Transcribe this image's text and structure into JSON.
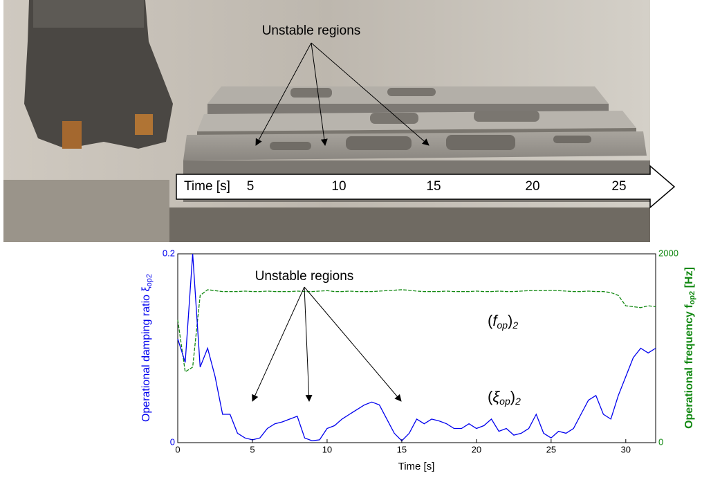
{
  "photo": {
    "annotation": "Unstable regions",
    "time_label": "Time [s]",
    "time_marks": [
      5,
      10,
      15,
      20,
      25
    ]
  },
  "chart_data": {
    "type": "line",
    "annotation": "Unstable regions",
    "xlabel": "Time [s]",
    "ylabel": {
      "text": "Operational damping ratio ξ",
      "sub": "op2"
    },
    "y2label": {
      "text": "Operational frequency  f",
      "sub": "op2",
      "end": " [Hz]"
    },
    "series_labels": [
      {
        "open": "(",
        "symbol": "f",
        "sub": "op",
        "close": ")",
        "index": "2"
      },
      {
        "open": "(",
        "symbol": "ξ",
        "sub": "op",
        "close": ")",
        "index": "2"
      }
    ],
    "xlim": [
      0,
      32
    ],
    "xticks": [
      0,
      5,
      10,
      15,
      20,
      25,
      30
    ],
    "ylim": [
      0,
      0.2
    ],
    "yticks": [
      0,
      0.2
    ],
    "y2lim": [
      0,
      2000
    ],
    "y2ticks": [
      0,
      2000
    ],
    "x": [
      0,
      0.5,
      1,
      1.5,
      2,
      2.5,
      3,
      3.5,
      4,
      4.5,
      5,
      5.5,
      6,
      6.5,
      7,
      7.5,
      8,
      8.5,
      9,
      9.5,
      10,
      10.5,
      11,
      11.5,
      12,
      12.5,
      13,
      13.5,
      14,
      14.5,
      15,
      15.5,
      16,
      16.5,
      17,
      17.5,
      18,
      18.5,
      19,
      19.5,
      20,
      20.5,
      21,
      21.5,
      22,
      22.5,
      23,
      23.5,
      24,
      24.5,
      25,
      25.5,
      26,
      26.5,
      27,
      27.5,
      28,
      28.5,
      29,
      29.5,
      30,
      30.5,
      31,
      31.5,
      32
    ],
    "series": [
      {
        "color": "#0000ee",
        "axis": "y",
        "dash": false,
        "values": [
          0.11,
          0.085,
          0.2,
          0.08,
          0.1,
          0.07,
          0.03,
          0.03,
          0.01,
          0.005,
          0.003,
          0.005,
          0.015,
          0.02,
          0.022,
          0.025,
          0.028,
          0.005,
          0.002,
          0.003,
          0.015,
          0.018,
          0.025,
          0.03,
          0.035,
          0.04,
          0.043,
          0.04,
          0.025,
          0.01,
          0.002,
          0.01,
          0.025,
          0.02,
          0.025,
          0.023,
          0.02,
          0.015,
          0.015,
          0.02,
          0.015,
          0.018,
          0.025,
          0.012,
          0.015,
          0.008,
          0.01,
          0.015,
          0.03,
          0.01,
          0.005,
          0.012,
          0.01,
          0.015,
          0.03,
          0.045,
          0.05,
          0.03,
          0.025,
          0.05,
          0.07,
          0.09,
          0.1,
          0.095,
          0.1
        ]
      },
      {
        "color": "#118811",
        "axis": "y2",
        "dash": true,
        "values": [
          1300,
          750,
          800,
          1560,
          1620,
          1610,
          1600,
          1600,
          1600,
          1605,
          1600,
          1600,
          1605,
          1600,
          1600,
          1600,
          1605,
          1600,
          1600,
          1605,
          1610,
          1600,
          1600,
          1605,
          1600,
          1600,
          1600,
          1605,
          1610,
          1615,
          1620,
          1615,
          1605,
          1600,
          1600,
          1600,
          1605,
          1600,
          1600,
          1600,
          1605,
          1600,
          1600,
          1605,
          1600,
          1600,
          1605,
          1610,
          1610,
          1610,
          1615,
          1610,
          1605,
          1600,
          1600,
          1605,
          1600,
          1600,
          1590,
          1560,
          1450,
          1440,
          1430,
          1450,
          1440
        ]
      }
    ]
  }
}
